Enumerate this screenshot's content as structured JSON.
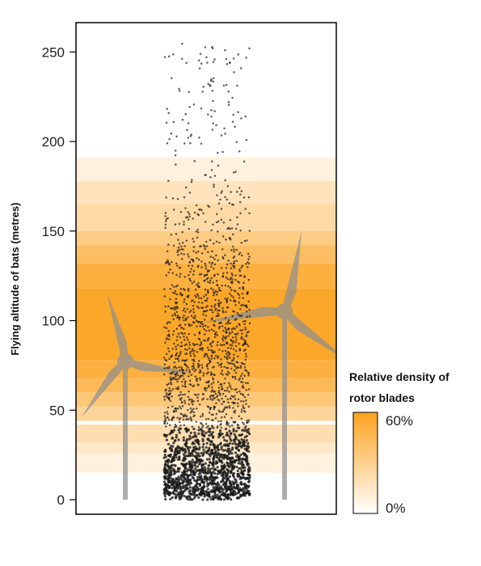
{
  "chart_data": {
    "type": "scatter",
    "title": "",
    "xlabel": "",
    "ylabel": "Flying altitude of bats (metres)",
    "ylim": [
      0,
      258
    ],
    "yticks": [
      0,
      50,
      100,
      150,
      200,
      250
    ],
    "grid": false,
    "legend": {
      "title_line1": "Relative density of",
      "title_line2": "rotor blades",
      "max_label": "60%",
      "min_label": "0%",
      "placement": "bottom-right",
      "color_max": "#FBA21E",
      "color_min": "#FFFFFF"
    },
    "rotor_density_bands": [
      {
        "from": 15,
        "to": 26,
        "density": 0.15
      },
      {
        "from": 26,
        "to": 32,
        "density": 0.25
      },
      {
        "from": 32,
        "to": 42,
        "density": 0.35
      },
      {
        "from": 42,
        "to": 44,
        "density": 0.0
      },
      {
        "from": 44,
        "to": 52,
        "density": 0.45
      },
      {
        "from": 52,
        "to": 60,
        "density": 0.6
      },
      {
        "from": 60,
        "to": 68,
        "density": 0.75
      },
      {
        "from": 68,
        "to": 78,
        "density": 0.85
      },
      {
        "from": 78,
        "to": 118,
        "density": 0.95
      },
      {
        "from": 118,
        "to": 132,
        "density": 0.85
      },
      {
        "from": 132,
        "to": 142,
        "density": 0.7
      },
      {
        "from": 142,
        "to": 150,
        "density": 0.55
      },
      {
        "from": 150,
        "to": 165,
        "density": 0.4
      },
      {
        "from": 165,
        "to": 178,
        "density": 0.3
      },
      {
        "from": 178,
        "to": 191,
        "density": 0.15
      }
    ],
    "bat_altitude_distribution": [
      {
        "from": 0,
        "to": 10,
        "count": 420
      },
      {
        "from": 10,
        "to": 20,
        "count": 360
      },
      {
        "from": 20,
        "to": 30,
        "count": 300
      },
      {
        "from": 30,
        "to": 40,
        "count": 170
      },
      {
        "from": 40,
        "to": 50,
        "count": 130
      },
      {
        "from": 50,
        "to": 60,
        "count": 130
      },
      {
        "from": 60,
        "to": 80,
        "count": 260
      },
      {
        "from": 80,
        "to": 100,
        "count": 250
      },
      {
        "from": 100,
        "to": 120,
        "count": 210
      },
      {
        "from": 120,
        "to": 140,
        "count": 160
      },
      {
        "from": 140,
        "to": 160,
        "count": 80
      },
      {
        "from": 160,
        "to": 180,
        "count": 45
      },
      {
        "from": 180,
        "to": 200,
        "count": 22
      },
      {
        "from": 200,
        "to": 230,
        "count": 45
      },
      {
        "from": 230,
        "to": 255,
        "count": 40
      }
    ],
    "colors": {
      "points": "#1a1a1a",
      "turbine": "#8f8f8f",
      "frame": "#000000"
    }
  }
}
